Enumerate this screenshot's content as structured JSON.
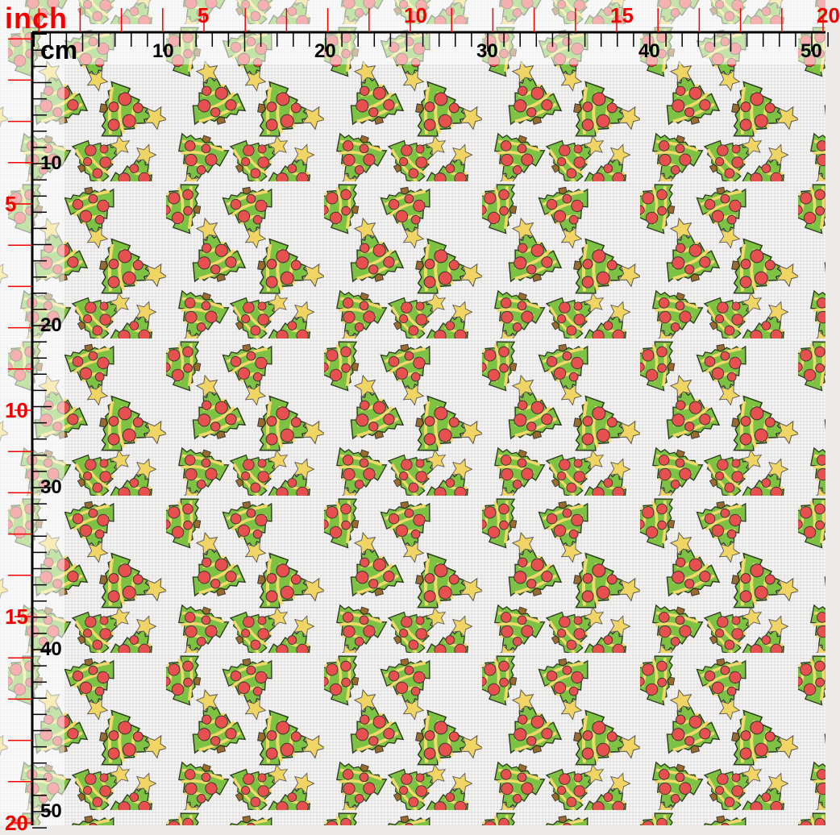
{
  "rulers": {
    "inch_unit": "inch",
    "cm_unit": "cm",
    "top_inch_labels": [
      "5",
      "10",
      "15",
      "20"
    ],
    "top_cm_labels": [
      "10",
      "20",
      "30",
      "40",
      "50"
    ],
    "left_inch_labels": [
      "5",
      "10",
      "15",
      "20"
    ],
    "left_cm_labels": [
      "10",
      "20",
      "30",
      "40",
      "50"
    ],
    "inch_color": "#f20000",
    "cm_color": "#000000"
  },
  "pattern": {
    "motif": "christmas-tree",
    "colors": {
      "tree": "#7dc242",
      "bauble": "#e8504f",
      "garland": "#f1d96a",
      "star": "#f0d464",
      "trunk": "#9a6b2c",
      "background": "#ecebea"
    }
  }
}
